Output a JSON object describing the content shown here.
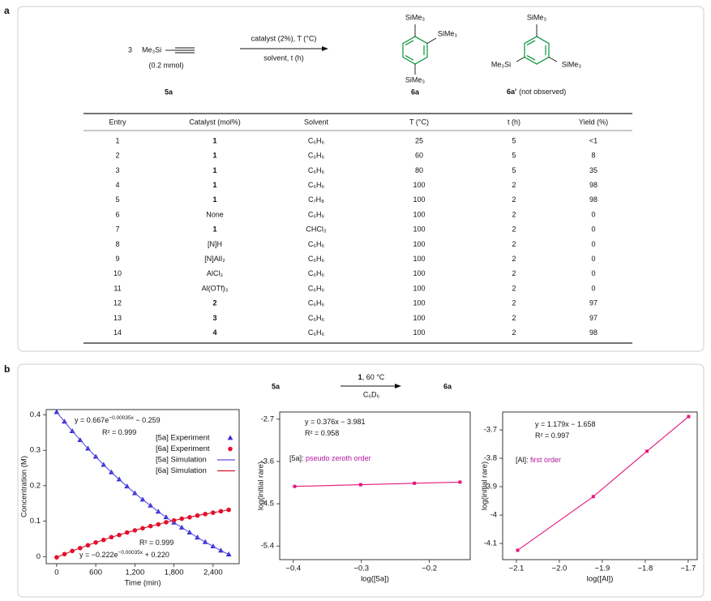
{
  "panel_a": {
    "label": "a",
    "scheme": {
      "reactant_coef": "3",
      "reactant": "Me₃Si",
      "amount": "(0.2 mmol)",
      "reactant_id": "5a",
      "conditions_above": "catalyst (2%), T (°C)",
      "conditions_below": "solvent, t (h)",
      "product_labels": [
        "SiMe₃",
        "SiMe₃",
        "SiMe₃"
      ],
      "product_id": "6a",
      "byproduct_labels": [
        "SiMe₃",
        "Me₃Si",
        "SiMe₃"
      ],
      "byproduct_id": "6a′",
      "byproduct_note": "(not observed)"
    },
    "table": {
      "headers": [
        "Entry",
        "Catalyst (mol%)",
        "Solvent",
        "T (°C)",
        "t (h)",
        "Yield (%)"
      ],
      "rows": [
        [
          1,
          "1",
          "C₆H₆",
          25,
          5,
          "<1"
        ],
        [
          2,
          "1",
          "C₆H₆",
          60,
          5,
          8
        ],
        [
          3,
          "1",
          "C₆H₆",
          80,
          5,
          35
        ],
        [
          4,
          "1",
          "C₆H₆",
          100,
          2,
          98
        ],
        [
          5,
          "1",
          "C₇H₈",
          100,
          2,
          98
        ],
        [
          6,
          "None",
          "C₆H₆",
          100,
          2,
          0
        ],
        [
          7,
          "1",
          "CHCl₃",
          100,
          2,
          0
        ],
        [
          8,
          "[N]H",
          "C₆H₆",
          100,
          2,
          0
        ],
        [
          9,
          "[N]AlI₂",
          "C₆H₆",
          100,
          2,
          0
        ],
        [
          10,
          "AlCl₃",
          "C₆H₆",
          100,
          2,
          0
        ],
        [
          11,
          "Al(OTf)₃",
          "C₆H₆",
          100,
          2,
          0
        ],
        [
          12,
          "2",
          "C₆H₆",
          100,
          2,
          97
        ],
        [
          13,
          "3",
          "C₆H₆",
          100,
          2,
          97
        ],
        [
          14,
          "4",
          "C₆H₆",
          100,
          2,
          98
        ]
      ]
    }
  },
  "panel_b": {
    "label": "b",
    "scheme": {
      "reactant": "5a",
      "catalyst": "1",
      "conditions": ", 60 °C",
      "solvent": "C₆D₆",
      "product": "6a"
    }
  },
  "chart_data": [
    {
      "type": "line",
      "xlabel": "Time (min)",
      "ylabel": "Concentration (M)",
      "x": [
        0,
        120,
        240,
        360,
        480,
        600,
        720,
        840,
        960,
        1080,
        1200,
        1320,
        1440,
        1560,
        1680,
        1800,
        1920,
        2040,
        2160,
        2280,
        2400,
        2520,
        2640
      ],
      "series": [
        {
          "name": "[5a] Experiment",
          "color": "#3b2fd0",
          "marker": "triangle",
          "values": [
            0.408,
            0.381,
            0.354,
            0.329,
            0.305,
            0.282,
            0.259,
            0.238,
            0.218,
            0.198,
            0.179,
            0.161,
            0.144,
            0.127,
            0.111,
            0.096,
            0.082,
            0.068,
            0.054,
            0.041,
            0.029,
            0.017,
            0.006
          ]
        },
        {
          "name": "[6a] Experiment",
          "color": "#e8112d",
          "marker": "circle",
          "values": [
            -0.002,
            0.007,
            0.016,
            0.024,
            0.032,
            0.04,
            0.047,
            0.055,
            0.061,
            0.068,
            0.074,
            0.08,
            0.086,
            0.091,
            0.097,
            0.102,
            0.107,
            0.111,
            0.116,
            0.12,
            0.124,
            0.128,
            0.132
          ]
        },
        {
          "name": "[5a] Simulation",
          "color": "#5a50e8",
          "line": true,
          "values": [
            0.408,
            0.381,
            0.354,
            0.329,
            0.305,
            0.282,
            0.259,
            0.238,
            0.218,
            0.198,
            0.179,
            0.161,
            0.144,
            0.127,
            0.111,
            0.096,
            0.082,
            0.068,
            0.054,
            0.041,
            0.029,
            0.017,
            0.006
          ]
        },
        {
          "name": "[6a] Simulation",
          "color": "#d8102a",
          "line": true,
          "values": [
            -0.002,
            0.007,
            0.016,
            0.024,
            0.032,
            0.04,
            0.047,
            0.055,
            0.061,
            0.068,
            0.074,
            0.08,
            0.086,
            0.091,
            0.097,
            0.102,
            0.107,
            0.111,
            0.116,
            0.12,
            0.124,
            0.128,
            0.132
          ]
        }
      ],
      "xlim": [
        -160,
        2800
      ],
      "ylim": [
        -0.02,
        0.415
      ],
      "xticks": [
        0,
        600,
        {
          "value": 1200,
          "label": "1,200"
        },
        {
          "value": 1800,
          "label": "1,800"
        },
        {
          "value": 2400,
          "label": "2,400"
        }
      ],
      "yticks": [
        0,
        0.1,
        0.2,
        0.3,
        0.4
      ],
      "legend": "upper right",
      "annotations": [
        [
          "y = 0.667e",
          {
            "sup": "−0.00035x"
          },
          " − 0.259"
        ],
        [
          "R² = 0.999"
        ],
        [
          "R² = 0.999"
        ],
        [
          "y = −0.222e",
          {
            "sup": "−0.00035x"
          },
          " + 0.220"
        ]
      ]
    },
    {
      "type": "line",
      "xlabel": "log([5a])",
      "ylabel": "log(initial rare)",
      "x": [
        -0.398,
        -0.301,
        -0.222,
        -0.155
      ],
      "series": [
        {
          "color": "#e6177c",
          "marker": "square",
          "line": true,
          "values": [
            -4.131,
            -4.094,
            -4.064,
            -4.039
          ]
        }
      ],
      "xlim": [
        -0.42,
        -0.14
      ],
      "ylim": [
        -5.69,
        -2.547
      ],
      "xticks": [
        {
          "value": -0.4,
          "label": "−0.4"
        },
        {
          "value": -0.3,
          "label": "−0.3"
        },
        {
          "value": -0.2,
          "label": "−0.2"
        }
      ],
      "yticks": [
        -2.7,
        -3.6,
        -4.5,
        -5.4
      ],
      "annotations": [
        [
          "y = 0.376x − 3.981"
        ],
        [
          "R² = 0.958"
        ],
        [
          "[5a]: ",
          {
            "hl": "pseudo zeroth order"
          }
        ]
      ]
    },
    {
      "type": "line",
      "xlabel": "log([Al])",
      "ylabel": "log(initial rare)",
      "x": [
        -2.097,
        -1.921,
        -1.796,
        -1.699
      ],
      "series": [
        {
          "color": "#e6177c",
          "marker": "square",
          "line": true,
          "values": [
            -4.124,
            -3.935,
            -3.775,
            -3.653
          ]
        }
      ],
      "xlim": [
        -2.132,
        -1.679
      ],
      "ylim": [
        -4.157,
        -3.637
      ],
      "xticks": [
        {
          "value": -2.1,
          "label": "−2.1"
        },
        {
          "value": -2.0,
          "label": "−2.0"
        },
        {
          "value": -1.9,
          "label": "−1.9"
        },
        {
          "value": -1.8,
          "label": "−1.8"
        },
        {
          "value": -1.7,
          "label": "−1.7"
        }
      ],
      "yticks": [
        -3.7,
        -3.8,
        -3.9,
        -4.0,
        -4.1
      ],
      "annotations": [
        [
          "y = 1.179x − 1.658"
        ],
        [
          "R² = 0.997"
        ],
        [
          "[Al]: ",
          {
            "hl": "first order"
          }
        ]
      ]
    }
  ]
}
